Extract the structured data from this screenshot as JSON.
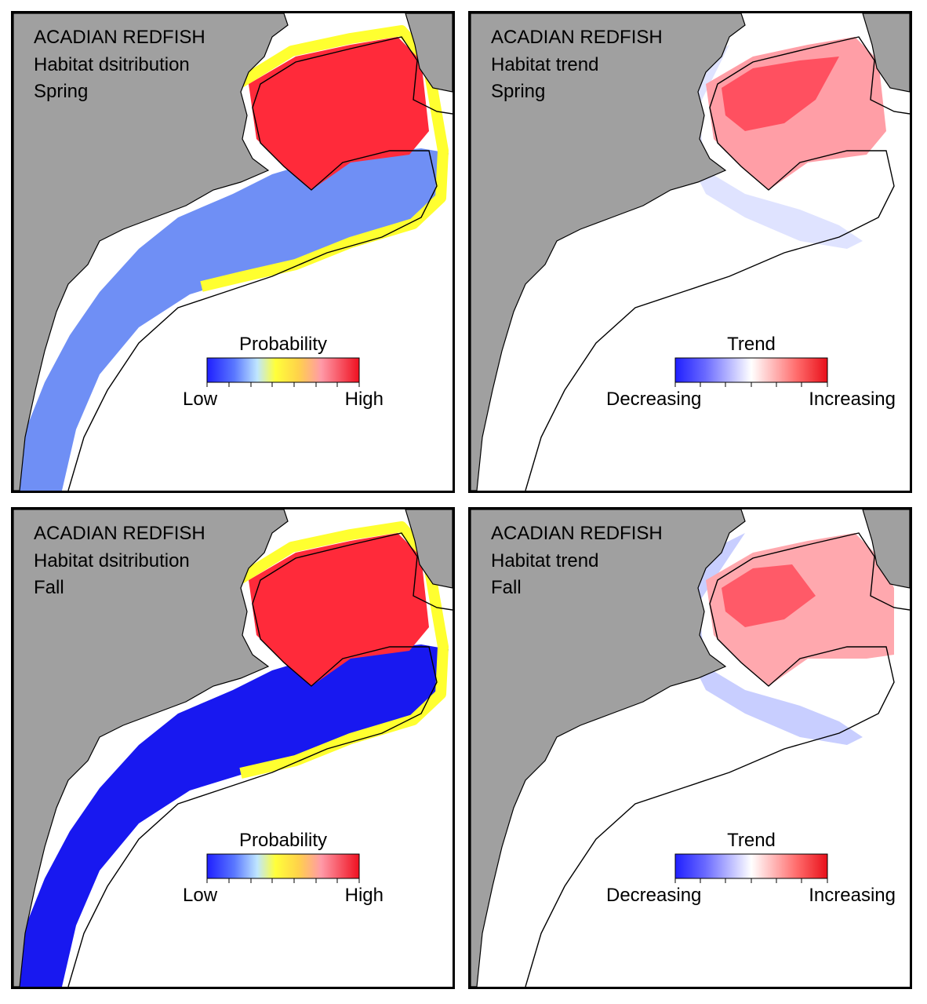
{
  "colors": {
    "land": "#a0a0a0",
    "sea": "#ffffff",
    "coast": "#000000",
    "prob_scale": [
      "#1f1fff",
      "#5a78ff",
      "#bfe6ff",
      "#ffff3a",
      "#ffd24a",
      "#ff9aa8",
      "#ff4a5a",
      "#ef1020"
    ],
    "trend_scale": [
      "#1f1fff",
      "#6b6bff",
      "#c4c4ff",
      "#ffffff",
      "#ffc4c4",
      "#ff6b6b",
      "#e8101a"
    ]
  },
  "panels": [
    {
      "id": "spring-distribution",
      "kind": "distribution",
      "title_lines": [
        "ACADIAN REDFISH",
        "Habitat dsitribution",
        "Spring"
      ],
      "legend": {
        "title": "Probability",
        "low": "Low",
        "high": "High"
      }
    },
    {
      "id": "spring-trend",
      "kind": "trend",
      "title_lines": [
        "ACADIAN REDFISH",
        "Habitat trend",
        "Spring"
      ],
      "legend": {
        "title": "Trend",
        "low": "Decreasing",
        "high": "Increasing"
      }
    },
    {
      "id": "fall-distribution",
      "kind": "distribution",
      "title_lines": [
        "ACADIAN REDFISH",
        "Habitat dsitribution",
        "Fall"
      ],
      "legend": {
        "title": "Probability",
        "low": "Low",
        "high": "High"
      }
    },
    {
      "id": "fall-trend",
      "kind": "trend",
      "title_lines": [
        "ACADIAN REDFISH",
        "Habitat trend",
        "Fall"
      ],
      "legend": {
        "title": "Trend",
        "low": "Decreasing",
        "high": "Increasing"
      }
    }
  ]
}
